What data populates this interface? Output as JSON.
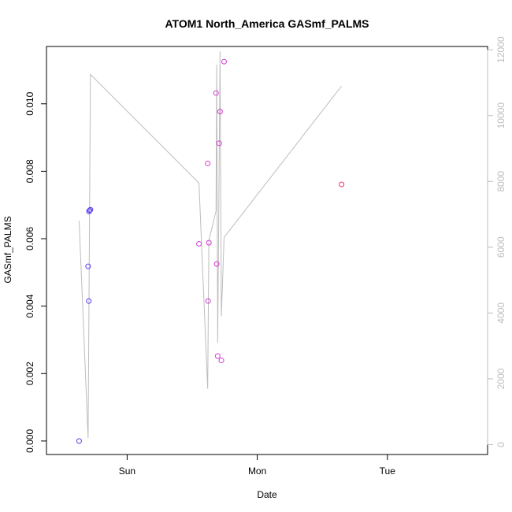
{
  "chart_data": {
    "type": "scatter",
    "title": "ATOM1 North_America GASmf_PALMS",
    "xlabel": "Date",
    "ylabel": "GASmf_PALMS",
    "x_ticks": [
      {
        "label": "Sun",
        "day": 1
      },
      {
        "label": "Mon",
        "day": 2
      },
      {
        "label": "Tue",
        "day": 3
      }
    ],
    "xlim_days": [
      0.38,
      3.77
    ],
    "ylim": [
      -0.0004,
      0.0117
    ],
    "y_ticks": [
      0.0,
      0.002,
      0.004,
      0.006,
      0.008,
      0.01
    ],
    "y_tick_labels": [
      "0.000",
      "0.002",
      "0.004",
      "0.006",
      "0.008",
      "0.010"
    ],
    "y2_lim": [
      -300,
      12100
    ],
    "y2_ticks": [
      0,
      2000,
      4000,
      6000,
      8000,
      10000,
      12000
    ],
    "y2_tick_labels": [
      "0",
      "2000",
      "4000",
      "6000",
      "8000",
      "10000",
      "12000"
    ],
    "colors": {
      "line": "#bdbdbd",
      "axis": "#000000",
      "axis2": "#bdbdbd"
    },
    "series": [
      {
        "kind": "points",
        "points": [
          {
            "day": 0.631,
            "y": 0.0,
            "color": "#5b3df0"
          },
          {
            "day": 0.7,
            "y": 0.00518,
            "color": "#5b3df0"
          },
          {
            "day": 0.705,
            "y": 0.00415,
            "color": "#5b3df0"
          },
          {
            "day": 0.707,
            "y": 0.00681,
            "color": "#5b3df0"
          },
          {
            "day": 0.712,
            "y": 0.00684,
            "color": "#5b3df0"
          },
          {
            "day": 0.718,
            "y": 0.00686,
            "color": "#5b3df0"
          },
          {
            "day": 1.552,
            "y": 0.00585,
            "color": "#d63ad6"
          },
          {
            "day": 1.619,
            "y": 0.00823,
            "color": "#d63ad6"
          },
          {
            "day": 1.622,
            "y": 0.00415,
            "color": "#d63ad6"
          },
          {
            "day": 1.628,
            "y": 0.00588,
            "color": "#d63ad6"
          },
          {
            "day": 1.683,
            "y": 0.01032,
            "color": "#d63ad6"
          },
          {
            "day": 1.688,
            "y": 0.00525,
            "color": "#d63ad6"
          },
          {
            "day": 1.696,
            "y": 0.00252,
            "color": "#d63ad6"
          },
          {
            "day": 1.707,
            "y": 0.00883,
            "color": "#d63ad6"
          },
          {
            "day": 1.714,
            "y": 0.00977,
            "color": "#d63ad6"
          },
          {
            "day": 1.724,
            "y": 0.00239,
            "color": "#d63ad6"
          },
          {
            "day": 1.745,
            "y": 0.01125,
            "color": "#d63ad6"
          },
          {
            "day": 2.648,
            "y": 0.00761,
            "color": "#f0287a"
          }
        ]
      },
      {
        "kind": "line",
        "axis": "y2",
        "points": [
          {
            "day": 0.631,
            "y": 6800
          },
          {
            "day": 0.7,
            "y": 200
          },
          {
            "day": 0.718,
            "y": 11250
          },
          {
            "day": 1.552,
            "y": 7950
          },
          {
            "day": 1.619,
            "y": 1700
          },
          {
            "day": 1.628,
            "y": 6200
          },
          {
            "day": 1.683,
            "y": 7100
          },
          {
            "day": 1.688,
            "y": 11550
          },
          {
            "day": 1.696,
            "y": 3100
          },
          {
            "day": 1.714,
            "y": 11950
          },
          {
            "day": 1.724,
            "y": 3900
          },
          {
            "day": 1.745,
            "y": 6300
          },
          {
            "day": 2.648,
            "y": 10900
          }
        ]
      }
    ]
  }
}
